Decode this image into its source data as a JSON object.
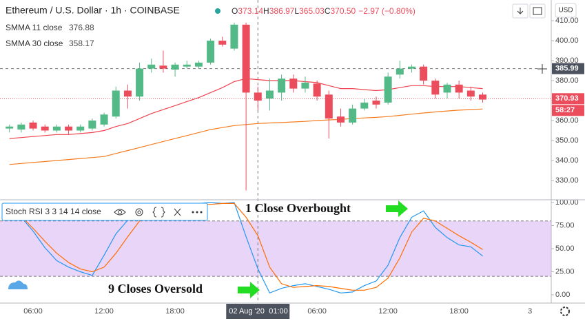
{
  "chart_data": [
    {
      "type": "candlestick",
      "title": "Ethereum / U.S. Dollar · 1h · COINBASE",
      "ohlc_summary": [
        {
          "label": "O",
          "value": "373.14"
        },
        {
          "label": "H",
          "value": "386.97"
        },
        {
          "label": "L",
          "value": "365.03"
        },
        {
          "label": "C",
          "value": "370.50"
        }
      ],
      "change": "−2.97 (−0.80%)",
      "currency": "USD",
      "categories": [
        null,
        null,
        "06:00",
        null,
        null,
        null,
        null,
        null,
        "12:00",
        null,
        null,
        null,
        null,
        null,
        "18:00",
        null,
        null,
        null,
        null,
        null,
        null,
        "01:00",
        null,
        null,
        null,
        null,
        "06:00",
        null,
        null,
        null,
        null,
        null,
        "12:00",
        null,
        null,
        null,
        null,
        null,
        "18:00",
        null,
        null,
        null,
        null,
        null,
        "3"
      ],
      "crosshair_date": "02 Aug '20",
      "open": [
        356,
        355.5,
        359,
        357,
        355,
        357,
        355,
        356,
        358,
        362,
        375,
        372,
        386,
        387.5,
        385.5,
        387,
        387,
        389,
        400,
        396,
        408,
        374,
        371,
        374,
        381,
        376,
        378.5,
        373,
        362,
        359,
        366,
        370,
        369,
        383,
        386,
        387,
        380,
        374,
        378,
        375,
        373,
        null,
        null,
        null,
        null
      ],
      "high": [
        358,
        359,
        360,
        358,
        358,
        358,
        358,
        361,
        364,
        377,
        378,
        389,
        391,
        395,
        389,
        390,
        390,
        401,
        402,
        409,
        409,
        377,
        381,
        383,
        383,
        382,
        380,
        375,
        366,
        368,
        371,
        372,
        384,
        390,
        388,
        388,
        381,
        379,
        380,
        377,
        374,
        null,
        null,
        null,
        null
      ],
      "low": [
        354,
        354,
        355,
        354,
        354,
        353,
        354,
        355,
        357,
        361,
        366,
        370,
        384,
        384,
        382,
        386,
        386,
        388,
        397,
        395,
        325,
        365,
        365,
        370,
        374,
        374,
        370,
        351,
        357,
        358,
        365,
        366,
        368,
        381,
        384,
        378,
        371,
        371,
        371,
        370,
        369,
        null,
        null,
        null,
        null
      ],
      "close": [
        357,
        358,
        356,
        355,
        357,
        355,
        357,
        360,
        363,
        375,
        372,
        386,
        388,
        386,
        388,
        388,
        389,
        400,
        398,
        408,
        374,
        370,
        375,
        381,
        376,
        379,
        372,
        361,
        359,
        366,
        369,
        368,
        382,
        386,
        387,
        380,
        373,
        378,
        374,
        372,
        370.5,
        null,
        null,
        null,
        null
      ],
      "up_color": "#53b987",
      "down_color": "#eb4d5c",
      "series": [
        {
          "name": "SMMA 11 close",
          "last": "376.88",
          "color": "#f0434f",
          "values": [
            351,
            351.5,
            352,
            352.5,
            353,
            353,
            353.5,
            354,
            355,
            357,
            358.5,
            361,
            363.5,
            365.5,
            367.5,
            369.5,
            371.5,
            374,
            376.5,
            379.5,
            381,
            380.5,
            380,
            380,
            380,
            379.5,
            379,
            377.5,
            376,
            376,
            375.5,
            375,
            375.5,
            376.5,
            377.5,
            377.5,
            377,
            377,
            377,
            376.5,
            376,
            null,
            null,
            null,
            null
          ]
        },
        {
          "name": "SMMA 30 close",
          "last": "358.17",
          "color": "#f57c1f",
          "values": [
            338,
            338.5,
            339,
            339.5,
            340,
            340.5,
            341,
            341.5,
            342,
            343.5,
            345,
            346.5,
            348,
            349.5,
            351,
            352.5,
            354,
            355.5,
            356.5,
            357.5,
            358,
            358.5,
            358.8,
            359,
            359.3,
            359.6,
            360,
            360.3,
            360.6,
            361,
            361.3,
            361.6,
            362,
            362.6,
            363.2,
            363.8,
            364.3,
            364.8,
            365.2,
            365.5,
            365.8,
            null,
            null,
            null,
            null
          ]
        }
      ],
      "crosshair_price": 385.99,
      "last_price": 370.93,
      "countdown": "58:27",
      "ylim": [
        320,
        420
      ],
      "yticks": [
        {
          "value": 330,
          "label": "330.00"
        },
        {
          "value": 340,
          "label": "340.00"
        },
        {
          "value": 350,
          "label": "350.00"
        },
        {
          "value": 360,
          "label": "360.00"
        },
        {
          "value": 370,
          "label": "370.00"
        },
        {
          "value": 380,
          "label": "380.00"
        },
        {
          "value": 390,
          "label": "390.00"
        },
        {
          "value": 400,
          "label": "400.00"
        },
        {
          "value": 410,
          "label": "410.00"
        }
      ]
    },
    {
      "type": "line",
      "title": "Stoch RSI 3 3 14 14 close",
      "series": [
        {
          "color": "#2196f3",
          "values": [
            95,
            84,
            69,
            51,
            37,
            30,
            25,
            21,
            43,
            66,
            81,
            96,
            97,
            98,
            99,
            98,
            99,
            100,
            99,
            100,
            63,
            28,
            2,
            7,
            10,
            12,
            9,
            6,
            2,
            3,
            10,
            15,
            32,
            62,
            84,
            91,
            73,
            62,
            54,
            52,
            42,
            null,
            null,
            null,
            null
          ]
        },
        {
          "color": "#ff6d00",
          "values": [
            90,
            85,
            72,
            58,
            45,
            35,
            28,
            25,
            30,
            45,
            63,
            80,
            92,
            96,
            97,
            98,
            98,
            98,
            99,
            99,
            84,
            64,
            30,
            12,
            8,
            9,
            10,
            9,
            7,
            5,
            5,
            8,
            18,
            40,
            68,
            83,
            80,
            72,
            64,
            57,
            49,
            null,
            null,
            null,
            null
          ]
        }
      ],
      "band": [
        20,
        80
      ],
      "band_color": "#e9d5f8",
      "annotations": [
        "1 Close Overbought",
        "9 Closes Oversold"
      ],
      "ylim": [
        -9,
        103
      ],
      "yticks": [
        {
          "value": 0,
          "label": "0.00"
        },
        {
          "value": 25,
          "label": "25.00"
        },
        {
          "value": 50,
          "label": "50.00"
        },
        {
          "value": 75,
          "label": "75.00"
        },
        {
          "value": 100,
          "label": "100.00"
        }
      ]
    }
  ]
}
